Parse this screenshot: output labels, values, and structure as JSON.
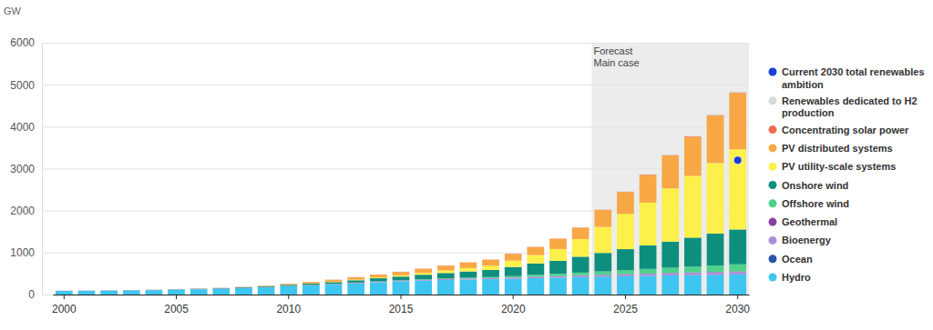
{
  "chart_data": {
    "type": "bar",
    "stacked": true,
    "grid": true,
    "legend": "right",
    "y_label": "GW",
    "annotation": {
      "lines": [
        "Forecast",
        "Main case"
      ],
      "x_start": 2024
    },
    "x": [
      2000,
      2001,
      2002,
      2003,
      2004,
      2005,
      2006,
      2007,
      2008,
      2009,
      2010,
      2011,
      2012,
      2013,
      2014,
      2015,
      2016,
      2017,
      2018,
      2019,
      2020,
      2021,
      2022,
      2023,
      2024,
      2025,
      2026,
      2027,
      2028,
      2029,
      2030
    ],
    "xticks": [
      2000,
      2005,
      2010,
      2015,
      2020,
      2025,
      2030
    ],
    "ylim": [
      0,
      6000
    ],
    "yticks": [
      0,
      1000,
      2000,
      3000,
      4000,
      5000,
      6000
    ],
    "series": [
      {
        "name": "Hydro",
        "color": "#3ec6f0",
        "values": [
          85,
          88,
          92,
          98,
          103,
          113,
          123,
          135,
          150,
          170,
          195,
          215,
          240,
          265,
          290,
          310,
          330,
          345,
          355,
          365,
          375,
          390,
          400,
          415,
          425,
          435,
          445,
          455,
          462,
          470,
          478
        ]
      },
      {
        "name": "Ocean",
        "color": "#2b56a8",
        "values": [
          0.5,
          0.5,
          0.5,
          0.5,
          0.5,
          0.5,
          0.5,
          0.5,
          0.5,
          0.5,
          0.5,
          0.5,
          0.5,
          0.5,
          0.5,
          0.5,
          0.5,
          0.5,
          0.5,
          0.5,
          0.5,
          0.5,
          0.5,
          0.5,
          0.5,
          0.5,
          0.5,
          0.5,
          0.5,
          0.5,
          0.5
        ]
      },
      {
        "name": "Bioenergy",
        "color": "#a890d8",
        "values": [
          3,
          3,
          3,
          4,
          4,
          5,
          5,
          6,
          6,
          7,
          8,
          9,
          10,
          12,
          14,
          16,
          18,
          20,
          22,
          24,
          27,
          30,
          33,
          36,
          40,
          44,
          48,
          52,
          56,
          60,
          64
        ]
      },
      {
        "name": "Geothermal",
        "color": "#8a3ea6",
        "values": [
          2,
          2,
          2,
          2,
          2,
          2,
          2,
          3,
          3,
          3,
          3,
          3,
          3,
          4,
          4,
          4,
          4,
          4,
          5,
          5,
          5,
          5,
          6,
          6,
          6,
          7,
          7,
          7,
          8,
          8,
          8
        ]
      },
      {
        "name": "Offshore wind",
        "color": "#4fd18c",
        "values": [
          0,
          0,
          0,
          0,
          0,
          0,
          0,
          0,
          0,
          0,
          1,
          2,
          3,
          4,
          5,
          8,
          10,
          14,
          18,
          22,
          30,
          45,
          55,
          65,
          80,
          95,
          110,
          125,
          140,
          155,
          170
        ]
      },
      {
        "name": "Onshore wind",
        "color": "#0e8f7e",
        "values": [
          0,
          0,
          1,
          2,
          3,
          5,
          8,
          10,
          15,
          20,
          25,
          30,
          40,
          55,
          75,
          90,
          110,
          130,
          150,
          170,
          220,
          270,
          310,
          380,
          440,
          500,
          560,
          620,
          690,
          760,
          830
        ]
      },
      {
        "name": "PV utility-scale systems",
        "color": "#fdf04b",
        "values": [
          0,
          0,
          0,
          0,
          0,
          0,
          0,
          0,
          1,
          1,
          2,
          5,
          10,
          15,
          20,
          30,
          45,
          60,
          80,
          100,
          150,
          200,
          280,
          420,
          620,
          840,
          1020,
          1270,
          1470,
          1680,
          1910
        ]
      },
      {
        "name": "PV distributed systems",
        "color": "#f7a845",
        "values": [
          0.5,
          0.5,
          1,
          1,
          1.5,
          2,
          3,
          4,
          6,
          10,
          20,
          35,
          45,
          55,
          65,
          80,
          95,
          115,
          130,
          140,
          160,
          190,
          240,
          270,
          400,
          520,
          660,
          780,
          930,
          1130,
          1340
        ]
      },
      {
        "name": "Concentrating solar power",
        "color": "#f26b4c",
        "values": [
          0.4,
          0.4,
          0.4,
          0.4,
          0.4,
          0.4,
          0.4,
          0.5,
          1,
          1,
          1,
          2,
          3,
          4,
          4,
          5,
          5,
          5,
          5,
          6,
          6,
          6,
          7,
          7,
          8,
          9,
          10,
          11,
          12,
          13,
          14
        ]
      },
      {
        "name": "Renewables dedicated to H2 production",
        "color": "#d9d9d9",
        "values": [
          0,
          0,
          0,
          0,
          0,
          0,
          0,
          0,
          0,
          0,
          0,
          0,
          0,
          0,
          0,
          0,
          0,
          0,
          0,
          0,
          0,
          0,
          0,
          1,
          2,
          4,
          6,
          9,
          12,
          16,
          20
        ]
      },
      {
        "name": "Current 2030 total renewables ambition",
        "color": "#1a3fd6",
        "type": "scatter",
        "marker": "circle",
        "values": [
          null,
          null,
          null,
          null,
          null,
          null,
          null,
          null,
          null,
          null,
          null,
          null,
          null,
          null,
          null,
          null,
          null,
          null,
          null,
          null,
          null,
          null,
          null,
          null,
          null,
          null,
          null,
          null,
          null,
          null,
          3200
        ]
      }
    ]
  }
}
